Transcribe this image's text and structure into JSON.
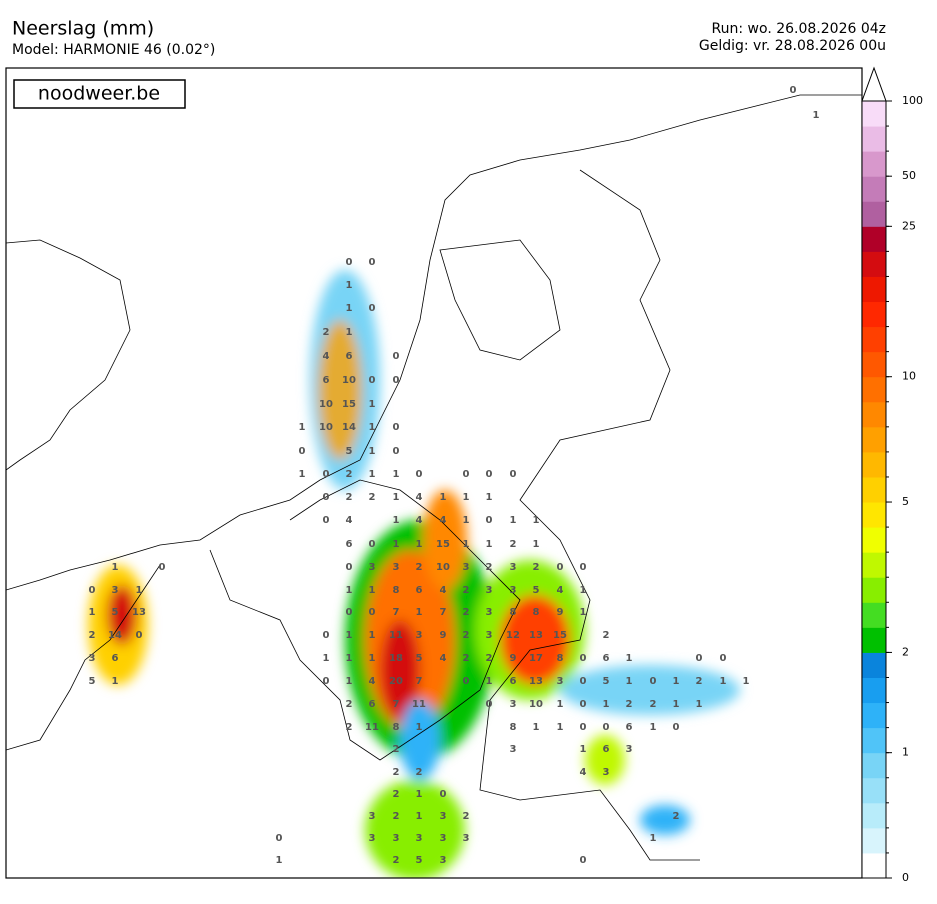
{
  "header": {
    "title": "Neerslag (mm)",
    "subtitle": "Model: HARMONIE 46 (0.02°)",
    "run": "Run: wo. 26.08.2026 04z",
    "valid": "Geldig: vr. 28.08.2026 00u"
  },
  "brand": "noodweer.be",
  "colorbar": {
    "levels": [
      0,
      0.2,
      0.4,
      0.6,
      0.8,
      1,
      1.25,
      1.5,
      1.75,
      2,
      2.5,
      3,
      3.5,
      4,
      4.5,
      5,
      6,
      7,
      8,
      9,
      10,
      12.5,
      15,
      17.5,
      20,
      22.5,
      25,
      35,
      50,
      65,
      80,
      100
    ],
    "colors": [
      "#ffffff",
      "#d8f4fc",
      "#b8ecfa",
      "#98e0f8",
      "#78d4f6",
      "#50c4f8",
      "#2eb2f8",
      "#189ef0",
      "#0a84dc",
      "#00c000",
      "#44dd22",
      "#88ee00",
      "#c0f800",
      "#f0ff00",
      "#ffe600",
      "#ffd000",
      "#ffb800",
      "#ffa000",
      "#ff8800",
      "#ff7000",
      "#ff5800",
      "#ff4000",
      "#ff2800",
      "#ee1800",
      "#d40c10",
      "#b00028",
      "#b060a0",
      "#c47cb8",
      "#d898cc",
      "#eabce6",
      "#f8dcf8"
    ],
    "ticks": [
      0,
      1,
      2,
      5,
      10,
      25,
      50,
      100
    ]
  },
  "map_labels": [
    [
      0,
      0
    ],
    [
      1
    ],
    [
      1,
      0
    ],
    [
      2,
      1
    ],
    [
      4,
      6,
      0
    ],
    [
      6,
      10,
      0,
      0
    ],
    [
      10,
      15,
      1
    ],
    [
      1,
      10,
      14,
      1,
      0
    ],
    [
      0,
      5,
      1,
      0
    ],
    [
      1,
      0,
      2,
      1,
      1,
      0,
      0,
      0,
      0
    ],
    [
      0,
      2,
      2,
      1,
      4,
      1,
      1,
      1
    ],
    [
      0,
      4,
      1,
      4,
      4,
      1,
      0,
      1,
      1
    ],
    [
      6,
      0,
      1,
      1,
      15,
      1,
      1,
      2,
      1
    ],
    [
      1,
      0,
      0,
      3,
      3,
      2,
      10,
      3,
      2,
      3,
      2,
      0,
      0
    ],
    [
      0,
      3,
      1,
      1,
      1,
      8,
      6,
      4,
      2,
      3,
      3,
      5,
      4,
      1
    ],
    [
      1,
      5,
      13,
      0,
      0,
      7,
      1,
      7,
      2,
      3,
      8,
      8,
      9,
      1
    ],
    [
      2,
      14,
      0,
      0,
      1,
      1,
      11,
      3,
      9,
      2,
      3,
      12,
      13,
      15,
      2
    ],
    [
      3,
      6,
      1,
      1,
      1,
      18,
      5,
      4,
      2,
      2,
      9,
      17,
      8,
      0,
      6,
      1,
      0,
      0
    ],
    [
      5,
      1,
      0,
      1,
      4,
      20,
      7,
      0,
      1,
      6,
      13,
      3,
      0,
      5,
      1,
      0,
      1,
      2,
      1,
      1
    ],
    [
      2,
      6,
      7,
      11,
      0,
      3,
      10,
      1,
      0,
      1,
      2,
      2,
      1,
      1
    ],
    [
      2,
      11,
      8,
      1,
      8,
      1,
      1,
      0,
      0,
      6,
      1,
      0
    ],
    [
      2,
      3,
      1,
      6,
      3
    ],
    [
      2,
      2,
      4,
      3
    ],
    [
      2,
      1,
      0
    ],
    [
      3,
      2,
      1,
      3,
      2,
      2
    ],
    [
      0,
      3,
      3,
      3,
      3,
      3,
      1
    ],
    [
      1,
      2,
      5,
      3,
      0
    ],
    [
      0
    ],
    [
      1
    ]
  ]
}
